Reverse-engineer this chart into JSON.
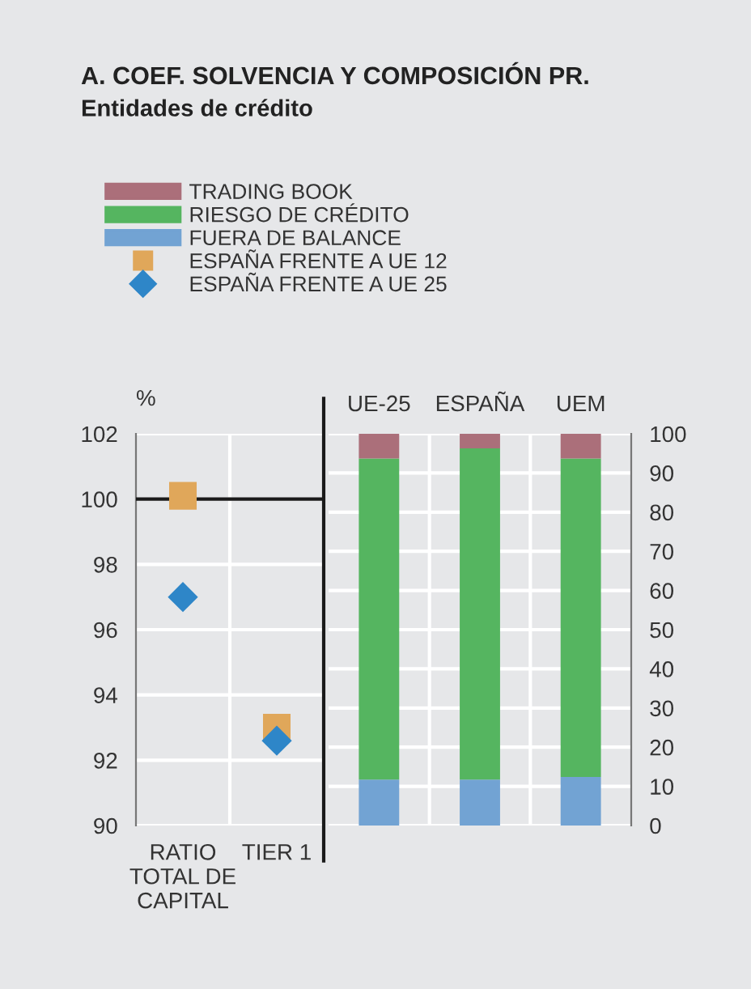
{
  "chart_data": [
    {
      "type": "scatter",
      "title": "A. COEF. SOLVENCIA Y COMPOSICIÓN PR.",
      "subtitle": "Entidades de crédito",
      "ylabel": "%",
      "categories": [
        "RATIO\nTOTAL DE\nCAPITAL",
        "TIER 1"
      ],
      "series": [
        {
          "name": "ESPAÑA FRENTE A UE 12",
          "color": "#e0a75a",
          "marker": "square",
          "values": [
            100.1,
            93.0
          ]
        },
        {
          "name": "ESPAÑA FRENTE A UE 25",
          "color": "#2e86c8",
          "marker": "diamond",
          "values": [
            97.0,
            92.6
          ]
        }
      ],
      "ylim": [
        90,
        102
      ],
      "yticks": [
        90,
        92,
        94,
        96,
        98,
        100,
        102
      ],
      "grid": true,
      "legend": "top",
      "ref_lines": [
        {
          "axis": "y",
          "value": 100,
          "color": "#1a1a1a"
        }
      ]
    },
    {
      "type": "bar",
      "stacked": true,
      "categories": [
        "UE-25",
        "ESPAÑA",
        "UEM"
      ],
      "series": [
        {
          "name": "FUERA DE BALANCE",
          "color": "#72a3d3",
          "values": [
            11.7,
            11.7,
            12.4
          ]
        },
        {
          "name": "RIESGO DE CRÉDITO",
          "color": "#55b560",
          "values": [
            82.0,
            84.6,
            81.3
          ]
        },
        {
          "name": "TRADING BOOK",
          "color": "#ab6f7a",
          "values": [
            6.3,
            3.7,
            6.3
          ]
        }
      ],
      "ylim": [
        0,
        100
      ],
      "yticks": [
        0,
        10,
        20,
        30,
        40,
        50,
        60,
        70,
        80,
        90,
        100
      ],
      "grid": true,
      "legend": "top"
    }
  ]
}
